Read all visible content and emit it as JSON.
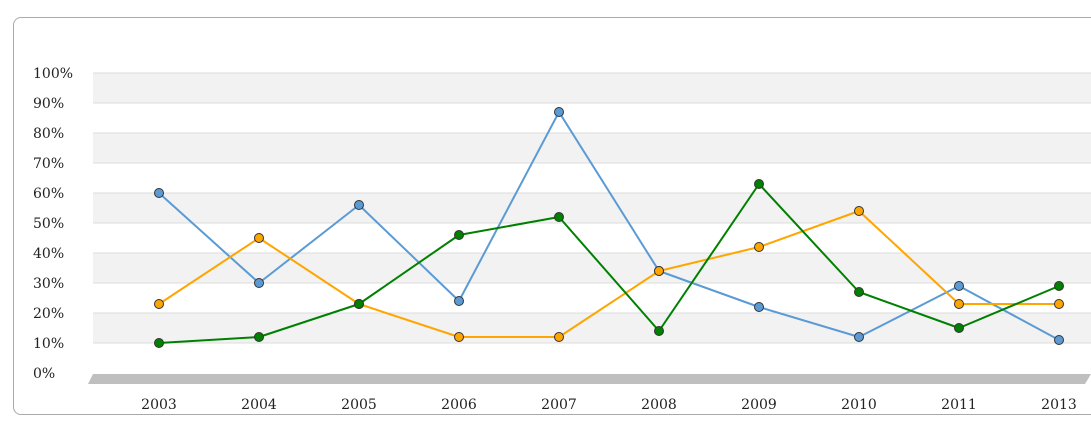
{
  "chart_data": {
    "type": "line",
    "title": "",
    "xlabel": "",
    "ylabel": "",
    "categories": [
      "2003",
      "2004",
      "2005",
      "2006",
      "2007",
      "2008",
      "2009",
      "2010",
      "2011",
      "2013"
    ],
    "y_ticks": [
      "0%",
      "10%",
      "20%",
      "30%",
      "40%",
      "50%",
      "60%",
      "70%",
      "80%",
      "90%",
      "100%"
    ],
    "ylim": [
      0,
      100
    ],
    "y_unit": "%",
    "grid": "horizontal alternating bands",
    "legend": "none",
    "series": [
      {
        "color": "#5b9bd5",
        "values": [
          60,
          30,
          56,
          24,
          87,
          34,
          22,
          12,
          29,
          11
        ]
      },
      {
        "color": "#ffa500",
        "values": [
          23,
          45,
          23,
          12,
          12,
          34,
          42,
          54,
          23,
          23
        ]
      },
      {
        "color": "#008000",
        "values": [
          10,
          12,
          23,
          46,
          52,
          14,
          63,
          27,
          15,
          29
        ]
      }
    ]
  }
}
